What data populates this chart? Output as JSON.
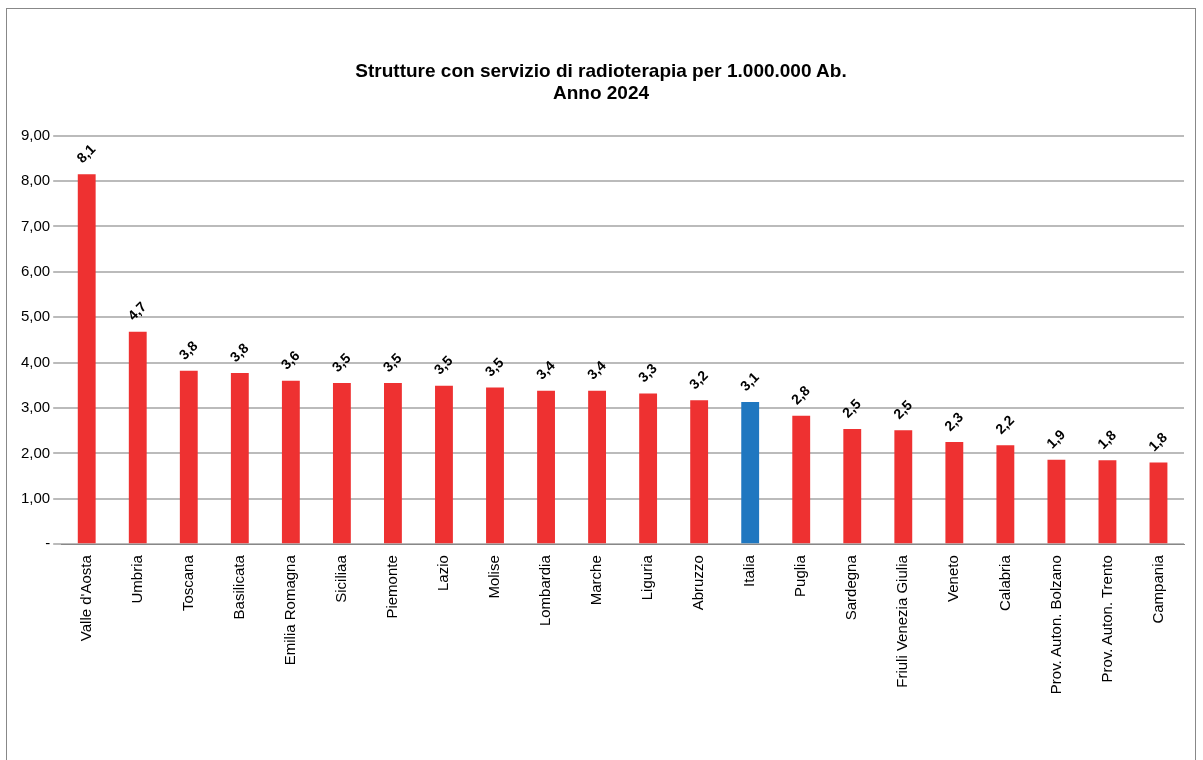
{
  "chart_data": {
    "type": "bar",
    "title": [
      "Strutture con servizio di radioterapia per 1.000.000 Ab.",
      "Anno 2024"
    ],
    "categories": [
      "Valle d'Aosta",
      "Umbria",
      "Toscana",
      "Basilicata",
      "Emilia Romagna",
      "Siciliaa",
      "Piemonte",
      "Lazio",
      "Molise",
      "Lombardia",
      "Marche",
      "Liguria",
      "Abruzzo",
      "Italia",
      "Puglia",
      "Sardegna",
      "Friuli Venezia Giulia",
      "Veneto",
      "Calabria",
      "Prov. Auton. Bolzano",
      "Prov. Auton. Trento",
      "Campania"
    ],
    "values": [
      8.15,
      4.68,
      3.82,
      3.77,
      3.6,
      3.55,
      3.55,
      3.49,
      3.45,
      3.38,
      3.38,
      3.32,
      3.17,
      3.13,
      2.83,
      2.54,
      2.51,
      2.25,
      2.18,
      1.86,
      1.85,
      1.8
    ],
    "value_labels": [
      "8,1",
      "4,7",
      "3,8",
      "3,8",
      "3,6",
      "3,5",
      "3,5",
      "3,5",
      "3,5",
      "3,4",
      "3,4",
      "3,3",
      "3,2",
      "3,1",
      "2,8",
      "2,5",
      "2,5",
      "2,3",
      "2,2",
      "1,9",
      "1,8",
      "1,8"
    ],
    "colors": [
      "#ee3131",
      "#ee3131",
      "#ee3131",
      "#ee3131",
      "#ee3131",
      "#ee3131",
      "#ee3131",
      "#ee3131",
      "#ee3131",
      "#ee3131",
      "#ee3131",
      "#ee3131",
      "#ee3131",
      "#1f77c0",
      "#ee3131",
      "#ee3131",
      "#ee3131",
      "#ee3131",
      "#ee3131",
      "#ee3131",
      "#ee3131",
      "#ee3131"
    ],
    "ylim": [
      0,
      9
    ],
    "yticks": [
      {
        "value": 0,
        "label": "-"
      },
      {
        "value": 1,
        "label": "1,00"
      },
      {
        "value": 2,
        "label": "2,00"
      },
      {
        "value": 3,
        "label": "3,00"
      },
      {
        "value": 4,
        "label": "4,00"
      },
      {
        "value": 5,
        "label": "5,00"
      },
      {
        "value": 6,
        "label": "6,00"
      },
      {
        "value": 7,
        "label": "7,00"
      },
      {
        "value": 8,
        "label": "8,00"
      },
      {
        "value": 9,
        "label": "9,00"
      }
    ],
    "grid": "y",
    "legend": false
  }
}
